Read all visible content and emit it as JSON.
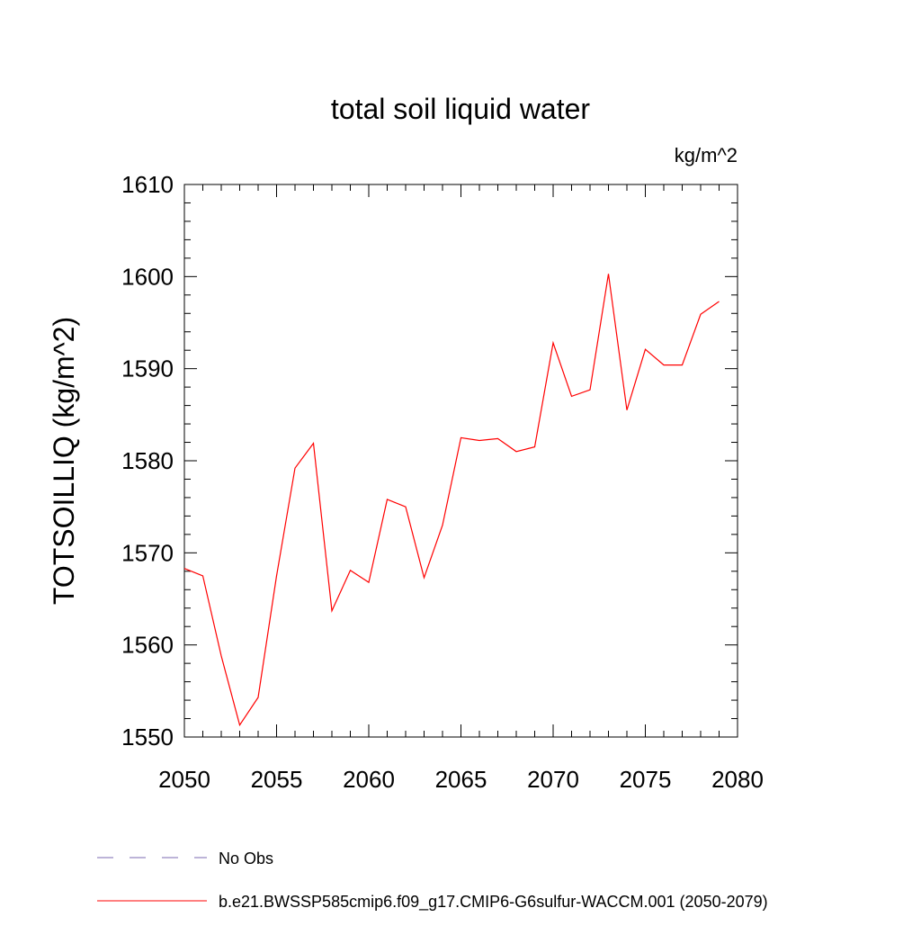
{
  "chart_data": {
    "type": "line",
    "title": "total soil liquid water",
    "units_label": "kg/m^2",
    "xlabel": "",
    "ylabel": "TOTSOILLIQ  (kg/m^2)",
    "xlim": [
      2050,
      2080
    ],
    "ylim": [
      1550,
      1610
    ],
    "x_ticks": [
      2050,
      2055,
      2060,
      2065,
      2070,
      2075,
      2080
    ],
    "y_ticks": [
      1550,
      1560,
      1570,
      1580,
      1590,
      1600,
      1610
    ],
    "grid": false,
    "legend_position": "bottom-left",
    "series": [
      {
        "name": "b.e21.BWSSP585cmip6.f09_g17.CMIP6-G6sulfur-WACCM.001 (2050-2079)",
        "color": "#ff0000",
        "style": "solid",
        "x": [
          2050,
          2051,
          2052,
          2053,
          2054,
          2055,
          2056,
          2057,
          2058,
          2059,
          2060,
          2061,
          2062,
          2063,
          2064,
          2065,
          2066,
          2067,
          2068,
          2069,
          2070,
          2071,
          2072,
          2073,
          2074,
          2075,
          2076,
          2077,
          2078,
          2079
        ],
        "y": [
          1568.3,
          1567.5,
          1558.8,
          1551.3,
          1554.3,
          1567.5,
          1579.2,
          1581.9,
          1563.7,
          1568.1,
          1566.8,
          1575.8,
          1575.0,
          1567.3,
          1573.0,
          1582.5,
          1582.2,
          1582.4,
          1581.0,
          1581.5,
          1592.8,
          1587.0,
          1587.7,
          1600.3,
          1585.5,
          1592.1,
          1590.4,
          1590.4,
          1595.9,
          1597.3
        ]
      }
    ],
    "legend_entries": [
      {
        "label": "No Obs",
        "color": "#7b68b0",
        "style": "dashed"
      },
      {
        "label": "b.e21.BWSSP585cmip6.f09_g17.CMIP6-G6sulfur-WACCM.001 (2050-2079)",
        "color": "#ff0000",
        "style": "solid"
      }
    ]
  }
}
